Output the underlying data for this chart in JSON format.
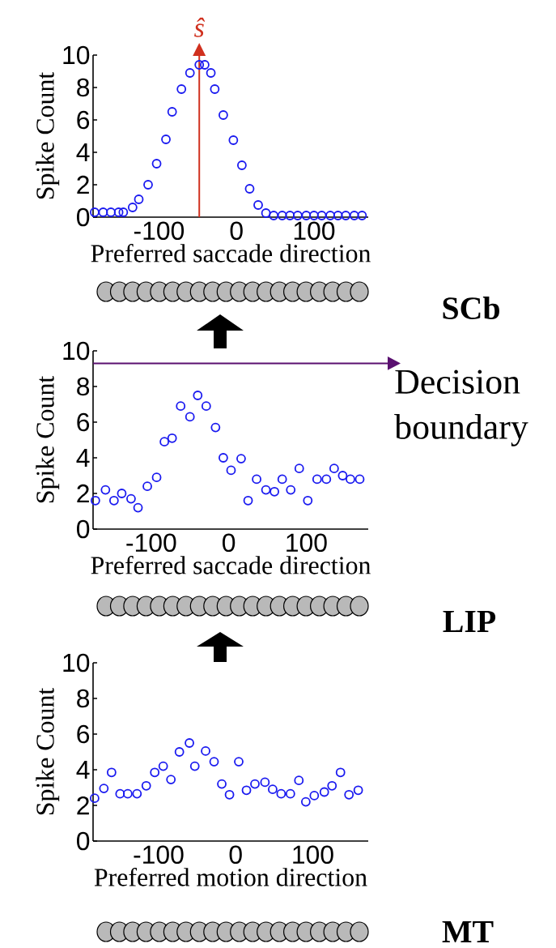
{
  "chart_data": [
    {
      "type": "scatter",
      "xlabel": "Preferred saccade direction",
      "ylabel": "Spike Count",
      "color": "#1a1af0",
      "marker": "circle",
      "xlim": [
        -185,
        170
      ],
      "ylim": [
        0,
        10
      ],
      "xticks": [
        -100,
        0,
        100
      ],
      "yticks": [
        0,
        2,
        4,
        6,
        8,
        10
      ],
      "x": [
        -183,
        -172,
        -162,
        -152,
        -146,
        -134,
        -126,
        -114,
        -103,
        -91,
        -83,
        -71,
        -60,
        -48,
        -41,
        -33,
        -28,
        -17,
        -4,
        7,
        17,
        28,
        38,
        48,
        59,
        69,
        79,
        90,
        100,
        110,
        121,
        131,
        141,
        152,
        162
      ],
      "values": [
        0.3,
        0.3,
        0.3,
        0.3,
        0.3,
        0.6,
        1.1,
        2.0,
        3.3,
        4.8,
        6.5,
        7.9,
        8.9,
        9.4,
        9.4,
        8.9,
        7.9,
        6.3,
        4.75,
        3.2,
        1.75,
        0.75,
        0.25,
        0.1,
        0.1,
        0.1,
        0.1,
        0.1,
        0.1,
        0.1,
        0.1,
        0.1,
        0.1,
        0.1,
        0.1
      ],
      "ref_lines": [
        {
          "axis": "x",
          "value": -48,
          "label": "ŝ",
          "color": "#d0301e"
        }
      ],
      "annotations": [
        "SCb"
      ]
    },
    {
      "type": "scatter",
      "xlabel": "Preferred saccade direction",
      "ylabel": "Spike Count",
      "color": "#1a1af0",
      "marker": "circle",
      "xlim": [
        -175,
        180
      ],
      "ylim": [
        0,
        10
      ],
      "xticks": [
        -100,
        0,
        100
      ],
      "yticks": [
        0,
        2,
        4,
        6,
        8,
        10
      ],
      "x": [
        -172,
        -159,
        -148,
        -138,
        -126,
        -117,
        -105,
        -93,
        -83,
        -73,
        -62,
        -50,
        -40,
        -29,
        -17,
        -7,
        3,
        16,
        25,
        36,
        48,
        59,
        69,
        80,
        91,
        102,
        114,
        126,
        136,
        147,
        157,
        169
      ],
      "values": [
        1.6,
        2.2,
        1.6,
        2.0,
        1.7,
        1.2,
        2.4,
        2.9,
        4.9,
        5.1,
        6.9,
        6.3,
        7.5,
        6.9,
        5.7,
        4.0,
        3.3,
        3.95,
        1.6,
        2.8,
        2.2,
        2.1,
        2.8,
        2.2,
        3.4,
        1.6,
        2.8,
        2.8,
        3.4,
        3.0,
        2.8,
        2.8
      ],
      "ref_lines": [
        {
          "axis": "y",
          "value": 9.3,
          "label": "Decision boundary",
          "color": "#5a1070"
        }
      ],
      "annotations": [
        "LIP"
      ]
    },
    {
      "type": "scatter",
      "xlabel": "Preferred motion direction",
      "ylabel": "Spike Count",
      "color": "#1a1af0",
      "marker": "circle",
      "xlim": [
        -185,
        172
      ],
      "ylim": [
        0,
        10
      ],
      "xticks": [
        -100,
        0,
        100
      ],
      "yticks": [
        0,
        2,
        4,
        6,
        8,
        10
      ],
      "x": [
        -183,
        -171,
        -161,
        -150,
        -140,
        -128,
        -116,
        -105,
        -94,
        -84,
        -73,
        -60,
        -53,
        -39,
        -28,
        -18,
        -8,
        4,
        14,
        25,
        38,
        48,
        59,
        71,
        82,
        91,
        102,
        115,
        125,
        136,
        147,
        159
      ],
      "values": [
        2.4,
        2.95,
        3.85,
        2.65,
        2.65,
        2.65,
        3.1,
        3.85,
        4.2,
        3.45,
        5.0,
        5.5,
        4.2,
        5.05,
        4.45,
        3.2,
        2.6,
        4.45,
        2.85,
        3.2,
        3.3,
        2.9,
        2.65,
        2.65,
        3.4,
        2.2,
        2.55,
        2.75,
        3.1,
        3.85,
        2.6,
        2.85
      ],
      "annotations": [
        "MT"
      ]
    }
  ]
}
